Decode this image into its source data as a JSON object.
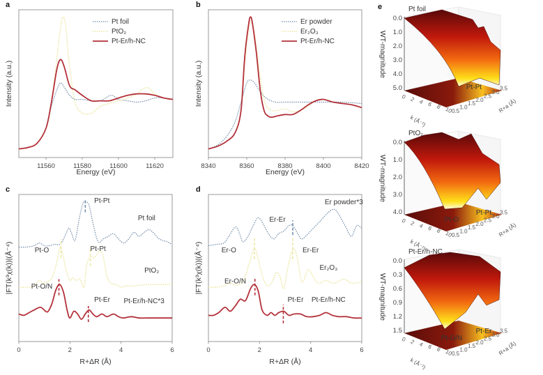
{
  "colors": {
    "ref_metal": "#6f8aa8",
    "ref_oxide": "#ece7a4",
    "sample": "#b3303a",
    "frame": "#9a9a9a"
  },
  "chart_data": [
    {
      "panel": "a",
      "type": "line",
      "title": "",
      "xlabel": "Energy (eV)",
      "ylabel": "Intensity (a.u.)",
      "xlim": [
        11545,
        11630
      ],
      "ylim": [
        0,
        1.0
      ],
      "xticks": [
        11560,
        11580,
        11600,
        11620
      ],
      "legend_position": "top-right",
      "series": [
        {
          "name": "Pt foil",
          "style": "dotted",
          "color_key": "ref_metal",
          "x": [
            11545,
            11550,
            11555,
            11560,
            11563,
            11566,
            11568,
            11570,
            11573,
            11576,
            11580,
            11585,
            11590,
            11596,
            11600,
            11605,
            11610,
            11615,
            11620,
            11625,
            11630
          ],
          "y": [
            0.02,
            0.03,
            0.06,
            0.17,
            0.33,
            0.45,
            0.5,
            0.47,
            0.41,
            0.38,
            0.38,
            0.37,
            0.37,
            0.41,
            0.38,
            0.37,
            0.36,
            0.37,
            0.39,
            0.39,
            0.38
          ]
        },
        {
          "name": "PtO2",
          "style": "dotted",
          "color_key": "ref_oxide",
          "x": [
            11545,
            11550,
            11555,
            11560,
            11563,
            11566,
            11568,
            11569.5,
            11571,
            11573,
            11576,
            11580,
            11585,
            11590,
            11595,
            11600,
            11605,
            11610,
            11614,
            11617,
            11620,
            11625,
            11630
          ],
          "y": [
            0.02,
            0.03,
            0.06,
            0.17,
            0.36,
            0.68,
            0.9,
            0.98,
            0.9,
            0.62,
            0.36,
            0.28,
            0.28,
            0.33,
            0.35,
            0.37,
            0.39,
            0.42,
            0.46,
            0.46,
            0.42,
            0.39,
            0.38
          ]
        },
        {
          "name": "Pt-Er/h-NC",
          "style": "solid",
          "color_key": "sample",
          "x": [
            11545,
            11550,
            11555,
            11560,
            11563,
            11566,
            11568,
            11570,
            11573,
            11576,
            11580,
            11585,
            11590,
            11595,
            11600,
            11605,
            11610,
            11615,
            11620,
            11625,
            11630
          ],
          "y": [
            0.02,
            0.03,
            0.06,
            0.17,
            0.36,
            0.6,
            0.67,
            0.62,
            0.48,
            0.45,
            0.41,
            0.37,
            0.37,
            0.37,
            0.39,
            0.41,
            0.42,
            0.42,
            0.41,
            0.39,
            0.38
          ]
        }
      ]
    },
    {
      "panel": "b",
      "type": "line",
      "title": "",
      "xlabel": "Energy (eV)",
      "ylabel": "Intensity (a.u.)",
      "xlim": [
        8340,
        8420
      ],
      "ylim": [
        0,
        1.0
      ],
      "xticks": [
        8340,
        8360,
        8380,
        8400,
        8420
      ],
      "legend_position": "top-right",
      "series": [
        {
          "name": "Er powder",
          "style": "dotted",
          "color_key": "ref_metal",
          "x": [
            8340,
            8345,
            8350,
            8354,
            8357,
            8360,
            8362,
            8364,
            8367,
            8370,
            8375,
            8380,
            8390,
            8400,
            8410,
            8420
          ],
          "y": [
            0.02,
            0.05,
            0.12,
            0.22,
            0.36,
            0.5,
            0.52,
            0.5,
            0.44,
            0.39,
            0.36,
            0.36,
            0.36,
            0.36,
            0.36,
            0.35
          ]
        },
        {
          "name": "Er2O3",
          "style": "dotted",
          "color_key": "ref_oxide",
          "x": [
            8340,
            8345,
            8350,
            8354,
            8357,
            8359,
            8361,
            8362,
            8364,
            8366,
            8368,
            8370,
            8373,
            8376,
            8380,
            8384,
            8388,
            8392,
            8396,
            8400,
            8405,
            8410,
            8415,
            8420
          ],
          "y": [
            0.02,
            0.04,
            0.08,
            0.14,
            0.3,
            0.65,
            0.9,
            0.95,
            0.86,
            0.65,
            0.45,
            0.34,
            0.3,
            0.3,
            0.31,
            0.29,
            0.3,
            0.33,
            0.37,
            0.38,
            0.36,
            0.35,
            0.34,
            0.32
          ]
        },
        {
          "name": "Pt-Er/h-NC",
          "style": "solid",
          "color_key": "sample",
          "x": [
            8340,
            8345,
            8350,
            8354,
            8357,
            8359,
            8361,
            8362,
            8363,
            8365,
            8367,
            8369,
            8371,
            8373,
            8376,
            8380,
            8384,
            8388,
            8392,
            8396,
            8400,
            8405,
            8410,
            8415,
            8420
          ],
          "y": [
            0.02,
            0.04,
            0.08,
            0.14,
            0.3,
            0.7,
            0.93,
            0.98,
            0.93,
            0.72,
            0.45,
            0.3,
            0.26,
            0.25,
            0.26,
            0.27,
            0.27,
            0.3,
            0.34,
            0.37,
            0.38,
            0.36,
            0.35,
            0.34,
            0.32
          ]
        }
      ]
    },
    {
      "panel": "c",
      "type": "line",
      "title": "",
      "xlabel": "R+ΔR (Å)",
      "ylabel": "|FT(k³χ(k))|(Å⁻⁴)",
      "xlim": [
        0,
        6
      ],
      "ylim": [
        0,
        1.0
      ],
      "xticks": [
        0,
        2,
        4,
        6
      ],
      "series": [
        {
          "name": "Pt foil",
          "label": "Pt foil",
          "style": "dotted",
          "color_key": "ref_metal",
          "x": [
            0,
            0.3,
            0.6,
            0.8,
            1.0,
            1.2,
            1.4,
            1.6,
            1.75,
            1.95,
            2.05,
            2.2,
            2.35,
            2.5,
            2.6,
            2.75,
            2.9,
            3.1,
            3.3,
            3.5,
            3.7,
            3.9,
            4.1,
            4.3,
            4.5,
            4.7,
            4.9,
            5.1,
            5.3,
            5.5,
            5.8,
            6.0
          ],
          "y": [
            0.64,
            0.64,
            0.65,
            0.67,
            0.65,
            0.65,
            0.66,
            0.66,
            0.7,
            0.78,
            0.75,
            0.69,
            0.84,
            0.96,
            0.98,
            0.95,
            0.82,
            0.68,
            0.7,
            0.72,
            0.74,
            0.7,
            0.67,
            0.7,
            0.75,
            0.72,
            0.75,
            0.77,
            0.74,
            0.7,
            0.68,
            0.66
          ]
        },
        {
          "name": "PtO2",
          "label": "PtO₂",
          "style": "dotted",
          "color_key": "ref_oxide",
          "x": [
            0,
            0.3,
            0.6,
            0.8,
            0.95,
            1.1,
            1.3,
            1.45,
            1.6,
            1.7,
            1.85,
            2.0,
            2.1,
            2.25,
            2.4,
            2.55,
            2.65,
            2.8,
            2.95,
            3.1,
            3.2,
            3.3,
            3.45,
            3.6,
            3.8,
            4.0,
            4.2,
            4.5,
            5.0,
            5.5,
            6.0
          ],
          "y": [
            0.34,
            0.34,
            0.35,
            0.39,
            0.37,
            0.38,
            0.41,
            0.5,
            0.63,
            0.6,
            0.47,
            0.39,
            0.41,
            0.39,
            0.4,
            0.34,
            0.5,
            0.57,
            0.56,
            0.6,
            0.61,
            0.57,
            0.42,
            0.37,
            0.36,
            0.34,
            0.35,
            0.35,
            0.36,
            0.36,
            0.36
          ]
        },
        {
          "name": "Pt-Er/h-NC*3",
          "label": "Pt-Er/h-NC*3",
          "style": "solid",
          "color_key": "sample",
          "x": [
            0,
            0.2,
            0.4,
            0.6,
            0.85,
            1.05,
            1.15,
            1.3,
            1.45,
            1.6,
            1.75,
            1.9,
            2.0,
            2.15,
            2.3,
            2.45,
            2.6,
            2.75,
            2.9,
            3.05,
            3.25,
            3.45,
            3.7,
            3.9,
            4.1,
            4.4,
            4.7,
            5.0,
            5.3,
            5.6,
            6.0
          ],
          "y": [
            0.14,
            0.13,
            0.15,
            0.17,
            0.19,
            0.16,
            0.16,
            0.22,
            0.32,
            0.36,
            0.3,
            0.16,
            0.11,
            0.16,
            0.14,
            0.1,
            0.14,
            0.17,
            0.14,
            0.12,
            0.14,
            0.12,
            0.14,
            0.12,
            0.11,
            0.12,
            0.11,
            0.11,
            0.11,
            0.11,
            0.11
          ]
        }
      ],
      "annotations": [
        {
          "text": "Pt-Pt",
          "x": 2.6,
          "color_key": "ref_metal"
        },
        {
          "text": "Pt-O",
          "x": 1.65,
          "color_key": "ref_oxide"
        },
        {
          "text": "Pt-Pt",
          "x": 2.8,
          "color_key": "ref_oxide"
        },
        {
          "text": "Pt-O/N",
          "x": 1.57,
          "color_key": "sample"
        },
        {
          "text": "Pt-Er",
          "x": 2.72,
          "color_key": "sample"
        }
      ]
    },
    {
      "panel": "d",
      "type": "line",
      "title": "",
      "xlabel": "R+ΔR (Å)",
      "ylabel": "|FT(k³χ(k))|(Å⁻⁴)",
      "xlim": [
        0,
        6
      ],
      "ylim": [
        0,
        1.0
      ],
      "xticks": [
        0,
        2,
        4,
        6
      ],
      "series": [
        {
          "name": "Er powder*3",
          "label": "Er powder*3",
          "style": "dotted",
          "color_key": "ref_metal",
          "x": [
            0,
            0.3,
            0.6,
            0.8,
            1.05,
            1.2,
            1.35,
            1.55,
            1.75,
            1.95,
            2.15,
            2.35,
            2.55,
            2.75,
            2.95,
            3.15,
            3.3,
            3.5,
            3.65,
            3.85,
            4.1,
            4.4,
            4.7,
            4.95,
            5.2,
            5.4,
            5.6,
            5.8,
            6.0
          ],
          "y": [
            0.65,
            0.66,
            0.67,
            0.72,
            0.79,
            0.75,
            0.68,
            0.72,
            0.8,
            0.86,
            0.81,
            0.74,
            0.7,
            0.74,
            0.76,
            0.8,
            0.8,
            0.74,
            0.7,
            0.73,
            0.78,
            0.84,
            0.9,
            0.92,
            0.85,
            0.78,
            0.72,
            0.8,
            0.78
          ]
        },
        {
          "name": "Er2O3",
          "label": "Er₂O₃",
          "style": "dotted",
          "color_key": "ref_oxide",
          "x": [
            0,
            0.3,
            0.6,
            0.8,
            1.0,
            1.2,
            1.4,
            1.6,
            1.8,
            1.95,
            2.1,
            2.3,
            2.5,
            2.65,
            2.8,
            2.95,
            3.1,
            3.3,
            3.45,
            3.6,
            3.7,
            3.9,
            4.1,
            4.3,
            4.6,
            4.9,
            5.3,
            5.6,
            6.0
          ],
          "y": [
            0.34,
            0.34,
            0.35,
            0.37,
            0.36,
            0.36,
            0.4,
            0.52,
            0.63,
            0.55,
            0.43,
            0.35,
            0.38,
            0.45,
            0.42,
            0.33,
            0.48,
            0.62,
            0.58,
            0.42,
            0.38,
            0.47,
            0.42,
            0.37,
            0.39,
            0.37,
            0.4,
            0.37,
            0.38
          ]
        },
        {
          "name": "Pt-Er/h-NC",
          "label": "Pt-Er/h-NC",
          "style": "solid",
          "color_key": "sample",
          "x": [
            0,
            0.2,
            0.4,
            0.65,
            0.85,
            1.05,
            1.25,
            1.45,
            1.65,
            1.8,
            1.95,
            2.1,
            2.3,
            2.45,
            2.6,
            2.75,
            2.95,
            3.15,
            3.35,
            3.6,
            3.85,
            4.1,
            4.35,
            4.6,
            4.85,
            5.1,
            5.4,
            5.7,
            6.0
          ],
          "y": [
            0.13,
            0.13,
            0.15,
            0.19,
            0.16,
            0.2,
            0.25,
            0.24,
            0.33,
            0.36,
            0.31,
            0.17,
            0.13,
            0.15,
            0.13,
            0.15,
            0.16,
            0.13,
            0.14,
            0.14,
            0.12,
            0.12,
            0.13,
            0.15,
            0.13,
            0.12,
            0.12,
            0.11,
            0.11
          ]
        }
      ],
      "annotations": [
        {
          "text": "Er-Er",
          "x": 3.3,
          "color_key": "ref_metal"
        },
        {
          "text": "Er-O",
          "x": 1.8,
          "color_key": "ref_oxide"
        },
        {
          "text": "Er-Er",
          "x": 3.3,
          "color_key": "ref_oxide"
        },
        {
          "text": "Er-O/N",
          "x": 1.82,
          "color_key": "sample"
        },
        {
          "text": "Pt-Er",
          "x": 2.93,
          "color_key": "sample"
        }
      ]
    },
    {
      "panel": "e",
      "type": "heatmap",
      "subplots": [
        {
          "title": "Pt foil",
          "zlabel": "WT-magnitude",
          "zticks": [
            "0.0",
            "1.0",
            "2.0",
            "3.0",
            "4.0",
            "5.0"
          ],
          "peaks": [
            "Pt-Pt"
          ]
        },
        {
          "title": "PtO₂",
          "zlabel": "WT-magnitude",
          "zticks": [
            "0.0",
            "1.0",
            "2.0",
            "3.0",
            "4.0"
          ],
          "peaks": [
            "Pt-O",
            "Pt-Pt"
          ]
        },
        {
          "title": "Pt-Er/h-NC",
          "zlabel": "WT-magnitude",
          "zticks": [
            "0.0",
            "0.3",
            "0.6",
            "0.9",
            "1.2",
            "1.5"
          ],
          "peaks": [
            "Pt-O/N",
            "Pt-Er"
          ]
        }
      ],
      "xlabel": "k (Å⁻¹)",
      "xticks": [
        "0",
        "2",
        "4",
        "6",
        "8",
        "10"
      ],
      "ylabel": "R+a (Å)",
      "yticks": [
        "0.5",
        "1.0",
        "1.5",
        "2.0",
        "2.5",
        "3.0",
        "3.5"
      ]
    }
  ],
  "labels": {
    "panel_a": "a",
    "panel_b": "b",
    "panel_c": "c",
    "panel_d": "d",
    "panel_e": "e",
    "c_series_labels": [
      "Pt foil",
      "PtO₂",
      "Pt-Er/h-NC*3"
    ],
    "d_series_labels": [
      "Er powder*3",
      "Er₂O₃",
      "Pt-Er/h-NC"
    ]
  }
}
